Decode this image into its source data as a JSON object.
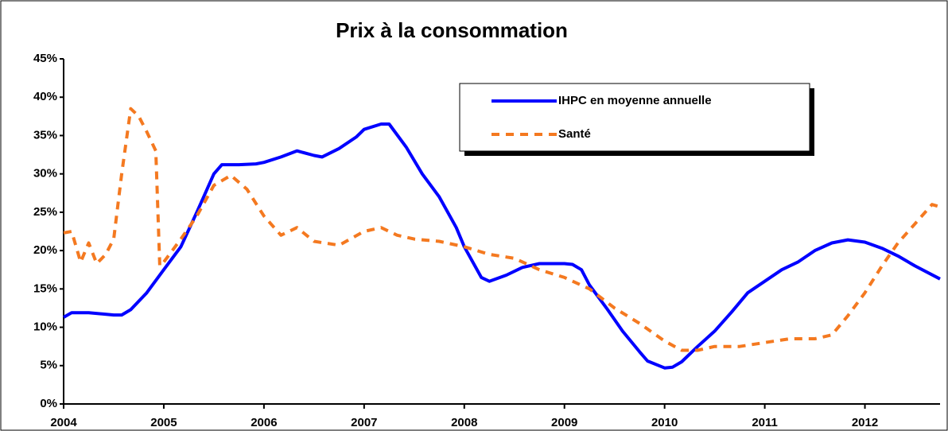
{
  "chart_data": {
    "type": "line",
    "title": "Prix à la consommation",
    "xlim": [
      2004,
      2012.75
    ],
    "xticks": [
      2004,
      2005,
      2006,
      2007,
      2008,
      2009,
      2010,
      2011,
      2012
    ],
    "ylim": [
      0,
      45
    ],
    "yticks": [
      {
        "value": 0,
        "label": "0%"
      },
      {
        "value": 5,
        "label": "5%"
      },
      {
        "value": 10,
        "label": "10%"
      },
      {
        "value": 15,
        "label": "15%"
      },
      {
        "value": 20,
        "label": "20%"
      },
      {
        "value": 25,
        "label": "25%"
      },
      {
        "value": 30,
        "label": "30%"
      },
      {
        "value": 35,
        "label": "35%"
      },
      {
        "value": 40,
        "label": "40%"
      },
      {
        "value": 45,
        "label": "45%"
      }
    ],
    "grid": false,
    "legend": "upper right",
    "series": [
      {
        "name": "IHPC en moyenne annuelle",
        "color": "#0000ff",
        "dash": false,
        "x": [
          2004,
          2004.08,
          2004.25,
          2004.5,
          2004.58,
          2004.67,
          2004.83,
          2005,
          2005.17,
          2005.33,
          2005.5,
          2005.58,
          2005.75,
          2005.92,
          2006,
          2006.17,
          2006.33,
          2006.5,
          2006.58,
          2006.75,
          2006.92,
          2007,
          2007.17,
          2007.25,
          2007.42,
          2007.58,
          2007.75,
          2007.92,
          2008,
          2008.17,
          2008.25,
          2008.42,
          2008.58,
          2008.75,
          2009,
          2009.08,
          2009.17,
          2009.25,
          2009.42,
          2009.58,
          2009.75,
          2009.83,
          2010,
          2010.08,
          2010.17,
          2010.33,
          2010.5,
          2010.67,
          2010.83,
          2011,
          2011.17,
          2011.33,
          2011.5,
          2011.67,
          2011.83,
          2012,
          2012.17,
          2012.33,
          2012.5,
          2012.75
        ],
        "values": [
          11.3,
          11.9,
          11.9,
          11.6,
          11.6,
          12.3,
          14.5,
          17.5,
          20.5,
          25,
          30,
          31.2,
          31.2,
          31.3,
          31.5,
          32.2,
          33,
          32.4,
          32.2,
          33.3,
          34.8,
          35.8,
          36.5,
          36.5,
          33.5,
          30,
          27,
          23,
          20.5,
          16.5,
          16,
          16.8,
          17.8,
          18.3,
          18.3,
          18.2,
          17.5,
          15.5,
          12.5,
          9.5,
          6.8,
          5.6,
          4.7,
          4.8,
          5.5,
          7.5,
          9.5,
          12,
          14.5,
          16,
          17.5,
          18.5,
          20,
          21,
          21.4,
          21.1,
          20.3,
          19.3,
          18,
          16.3
        ]
      },
      {
        "name": "Santé",
        "color": "#f47920",
        "dash": true,
        "x": [
          2004,
          2004.08,
          2004.17,
          2004.25,
          2004.33,
          2004.42,
          2004.5,
          2004.58,
          2004.67,
          2004.75,
          2004.83,
          2004.92,
          2004.96,
          2005,
          2005.17,
          2005.33,
          2005.5,
          2005.67,
          2005.83,
          2006,
          2006.17,
          2006.33,
          2006.5,
          2006.75,
          2007,
          2007.17,
          2007.33,
          2007.5,
          2007.75,
          2008,
          2008.25,
          2008.5,
          2008.75,
          2009,
          2009.25,
          2009.5,
          2009.75,
          2010,
          2010.17,
          2010.33,
          2010.5,
          2010.75,
          2011,
          2011.25,
          2011.5,
          2011.67,
          2011.83,
          2012,
          2012.17,
          2012.33,
          2012.5,
          2012.67,
          2012.75
        ],
        "values": [
          22.3,
          22.5,
          18.5,
          21,
          18.3,
          19.5,
          21.5,
          30,
          38.5,
          37.5,
          35.5,
          33,
          18,
          18.5,
          21.5,
          24.5,
          28.5,
          29.8,
          28,
          24.5,
          22,
          23,
          21.2,
          20.7,
          22.5,
          23,
          22,
          21.5,
          21.2,
          20.5,
          19.5,
          19,
          17.5,
          16.5,
          15,
          12.5,
          10.5,
          8.2,
          7,
          7,
          7.5,
          7.5,
          8,
          8.5,
          8.5,
          9,
          11.5,
          14.5,
          18,
          21,
          23.5,
          26,
          25.7
        ]
      }
    ]
  }
}
